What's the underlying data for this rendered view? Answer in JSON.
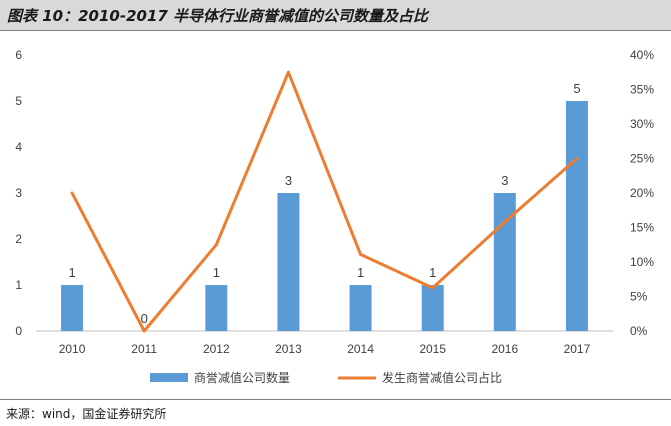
{
  "title": "图表 10：2010-2017 半导体行业商誉减值的公司数量及占比",
  "source": "来源：wind，国金证券研究所",
  "colors": {
    "bar": "#5b9bd5",
    "line": "#ed7d31",
    "text": "#404040",
    "grid_axis": "#bfbfbf"
  },
  "chart_data": {
    "type": "bar",
    "categories": [
      "2010",
      "2011",
      "2012",
      "2013",
      "2014",
      "2015",
      "2016",
      "2017"
    ],
    "series": [
      {
        "name": "商誉减值公司数量",
        "type": "bar",
        "axis": "left",
        "values": [
          1,
          0,
          1,
          3,
          1,
          1,
          3,
          5
        ]
      },
      {
        "name": "发生商誉减值公司占比",
        "type": "line",
        "axis": "right",
        "values": [
          0.2,
          0.0,
          0.125,
          0.375,
          0.111,
          0.0625,
          0.158,
          0.25
        ]
      }
    ],
    "ylim": [
      0,
      6
    ],
    "yticks": [
      "0",
      "1",
      "2",
      "3",
      "4",
      "5",
      "6"
    ],
    "y2lim": [
      0,
      0.4
    ],
    "y2ticks": [
      "0%",
      "5%",
      "10%",
      "15%",
      "20%",
      "25%",
      "30%",
      "35%",
      "40%"
    ],
    "data_labels": [
      "1",
      "0",
      "1",
      "3",
      "1",
      "1",
      "3",
      "5"
    ],
    "legend_position": "bottom",
    "grid": false
  }
}
